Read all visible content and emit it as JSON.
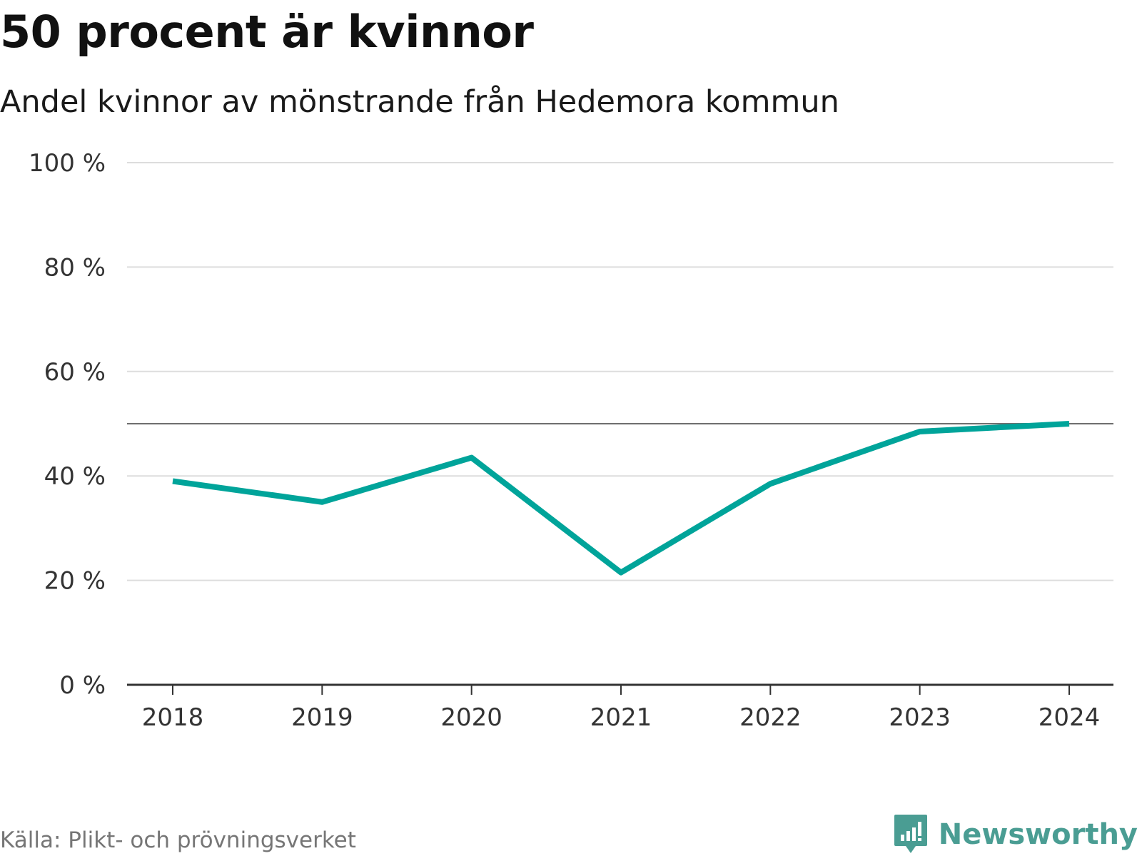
{
  "header": {
    "title": "50 procent är kvinnor",
    "subtitle": "Andel kvinnor av mönstrande från Hedemora kommun"
  },
  "footer": {
    "source": "Källa: Plikt- och prövningsverket",
    "brand": "Newsworthy"
  },
  "colors": {
    "line": "#00a49a",
    "grid": "#dddddd",
    "reference": "#6e6e6e",
    "axis": "#333333",
    "brand": "#4a9d93"
  },
  "chart_data": {
    "type": "line",
    "title": "50 procent är kvinnor",
    "subtitle": "Andel kvinnor av mönstrande från Hedemora kommun",
    "xlabel": "",
    "ylabel": "",
    "categories": [
      "2018",
      "2019",
      "2020",
      "2021",
      "2022",
      "2023",
      "2024"
    ],
    "series": [
      {
        "values": [
          39,
          35,
          43.5,
          21.5,
          38.5,
          48.5,
          50
        ]
      }
    ],
    "ylim": [
      0,
      100
    ],
    "yticks": [
      0,
      20,
      40,
      60,
      80,
      100
    ],
    "ytick_labels": [
      "0 %",
      "20 %",
      "40 %",
      "60 %",
      "80 %",
      "100 %"
    ],
    "reference_line": 50,
    "grid": true,
    "legend": "none"
  }
}
